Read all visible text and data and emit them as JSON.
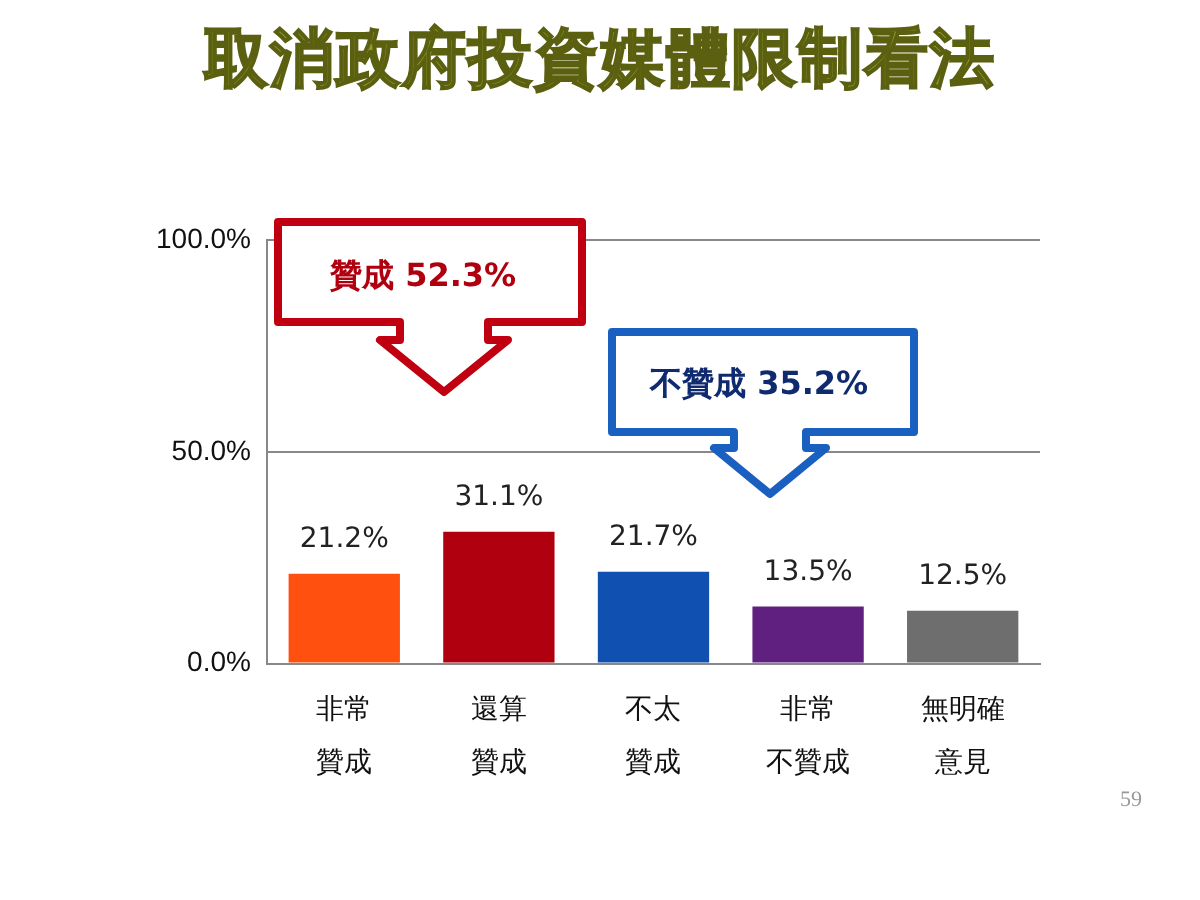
{
  "chart_data": {
    "type": "bar",
    "title": "取消政府投資媒體限制看法",
    "categories": [
      "非常贊成",
      "還算贊成",
      "不太贊成",
      "非常不贊成",
      "無明確意見"
    ],
    "values": [
      21.2,
      31.1,
      21.7,
      13.5,
      12.5
    ],
    "colors": [
      "#ff5010",
      "#b00010",
      "#1050b0",
      "#602080",
      "#6e6e6e"
    ],
    "value_labels": [
      "21.2%",
      "31.1%",
      "21.7%",
      "13.5%",
      "12.5%"
    ],
    "ylim": [
      0,
      100
    ],
    "yticks": [
      {
        "value": 0,
        "label": "0.0%"
      },
      {
        "value": 50,
        "label": "50.0%"
      },
      {
        "value": 100,
        "label": "100.0%"
      }
    ],
    "grid": "y",
    "legend": false,
    "annotations": [
      "贊成 52.3%",
      "不贊成 35.2%",
      "59"
    ]
  }
}
